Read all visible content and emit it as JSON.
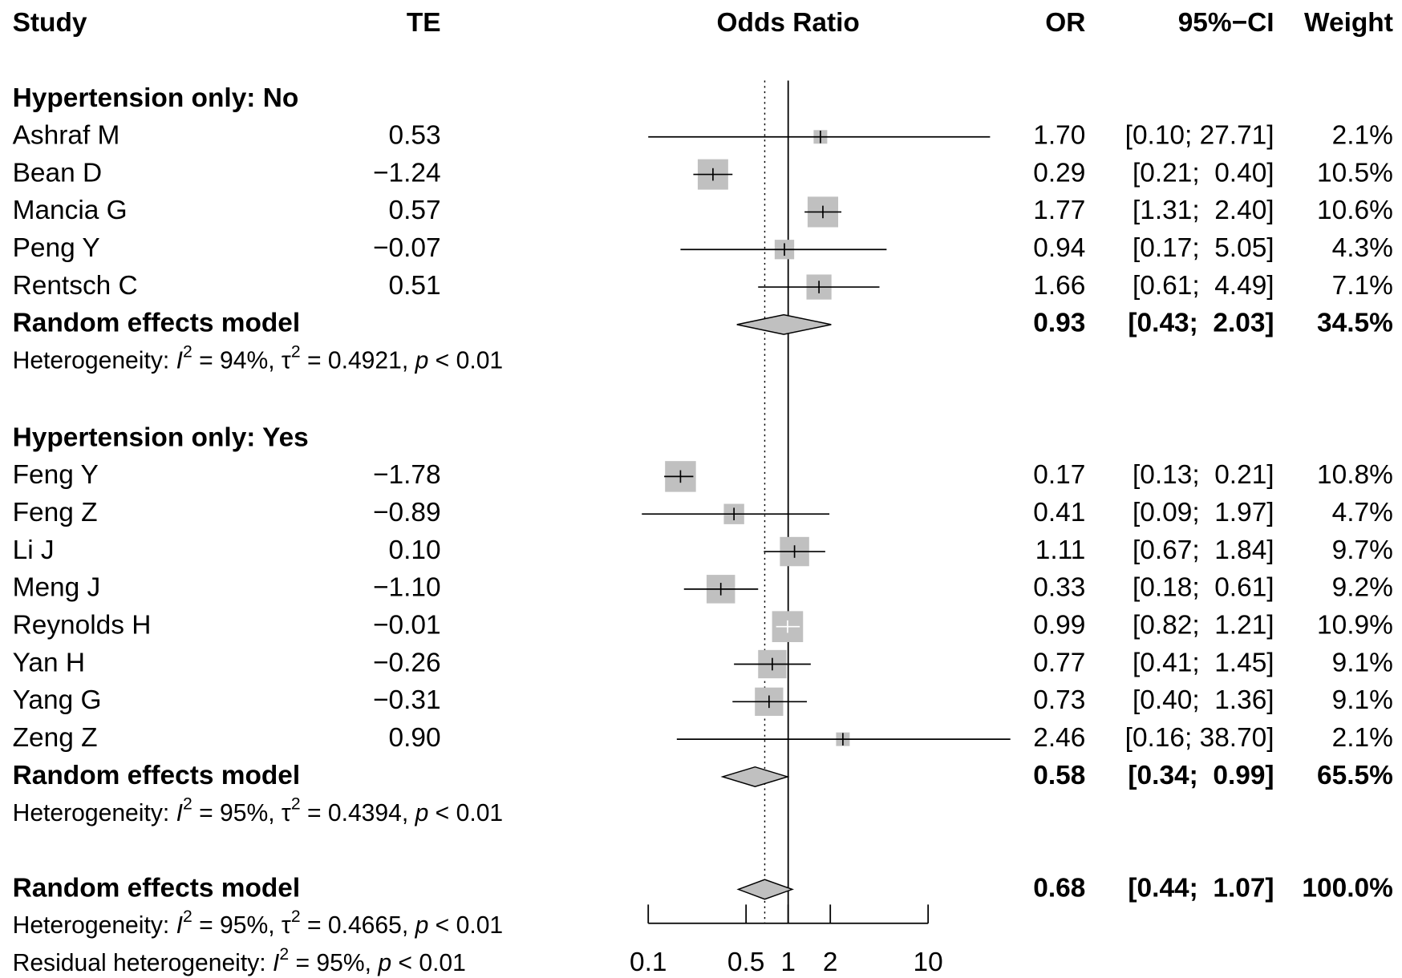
{
  "chart_data": {
    "type": "forest",
    "columns": {
      "study": "Study",
      "te": "TE",
      "plot": "Odds Ratio",
      "or": "OR",
      "ci": "95%−CI",
      "weight": "Weight"
    },
    "xscale": "log",
    "xlim": [
      0.1,
      10
    ],
    "xticks": [
      0.1,
      0.5,
      1,
      2,
      10
    ],
    "reference_line": 1,
    "square_color": "#c0c0c0",
    "diamond_color": "#c0c0c0",
    "groups": [
      {
        "title": "Hypertension only: No",
        "studies": [
          {
            "study": "Ashraf M",
            "te": 0.53,
            "te_label": "0.53",
            "or": 1.7,
            "or_label": "1.70",
            "lower": 0.1,
            "upper": 27.71,
            "ci_label": "[0.10; 27.71]",
            "weight": 2.1,
            "weight_label": "2.1%"
          },
          {
            "study": "Bean D",
            "te": -1.24,
            "te_label": "−1.24",
            "or": 0.29,
            "or_label": "0.29",
            "lower": 0.21,
            "upper": 0.4,
            "ci_label": "[0.21;  0.40]",
            "weight": 10.5,
            "weight_label": "10.5%"
          },
          {
            "study": "Mancia G",
            "te": 0.57,
            "te_label": "0.57",
            "or": 1.77,
            "or_label": "1.77",
            "lower": 1.31,
            "upper": 2.4,
            "ci_label": "[1.31;  2.40]",
            "weight": 10.6,
            "weight_label": "10.6%"
          },
          {
            "study": "Peng Y",
            "te": -0.07,
            "te_label": "−0.07",
            "or": 0.94,
            "or_label": "0.94",
            "lower": 0.17,
            "upper": 5.05,
            "ci_label": "[0.17;  5.05]",
            "weight": 4.3,
            "weight_label": "4.3%"
          },
          {
            "study": "Rentsch C",
            "te": 0.51,
            "te_label": "0.51",
            "or": 1.66,
            "or_label": "1.66",
            "lower": 0.61,
            "upper": 4.49,
            "ci_label": "[0.61;  4.49]",
            "weight": 7.1,
            "weight_label": "7.1%"
          }
        ],
        "model": {
          "label": "Random effects model",
          "or": 0.93,
          "or_label": "0.93",
          "lower": 0.43,
          "upper": 2.03,
          "ci_label": "[0.43;  2.03]",
          "weight": 34.5,
          "weight_label": "34.5%"
        },
        "heterogeneity": [
          {
            "text": "Heterogeneity: "
          },
          {
            "text": "I",
            "style": "italic"
          },
          {
            "text": "2",
            "style": "sup"
          },
          {
            "text": " = 94%, "
          },
          {
            "text": "τ"
          },
          {
            "text": "2",
            "style": "sup"
          },
          {
            "text": " = 0.4921, "
          },
          {
            "text": "p",
            "style": "italic"
          },
          {
            "text": " < 0.01"
          }
        ]
      },
      {
        "title": "Hypertension only: Yes",
        "studies": [
          {
            "study": "Feng Y",
            "te": -1.78,
            "te_label": "−1.78",
            "or": 0.17,
            "or_label": "0.17",
            "lower": 0.13,
            "upper": 0.21,
            "ci_label": "[0.13;  0.21]",
            "weight": 10.8,
            "weight_label": "10.8%"
          },
          {
            "study": "Feng Z",
            "te": -0.89,
            "te_label": "−0.89",
            "or": 0.41,
            "or_label": "0.41",
            "lower": 0.09,
            "upper": 1.97,
            "ci_label": "[0.09;  1.97]",
            "weight": 4.7,
            "weight_label": "4.7%"
          },
          {
            "study": "Li J",
            "te": 0.1,
            "te_label": "0.10",
            "or": 1.11,
            "or_label": "1.11",
            "lower": 0.67,
            "upper": 1.84,
            "ci_label": "[0.67;  1.84]",
            "weight": 9.7,
            "weight_label": "9.7%"
          },
          {
            "study": "Meng J",
            "te": -1.1,
            "te_label": "−1.10",
            "or": 0.33,
            "or_label": "0.33",
            "lower": 0.18,
            "upper": 0.61,
            "ci_label": "[0.18;  0.61]",
            "weight": 9.2,
            "weight_label": "9.2%"
          },
          {
            "study": "Reynolds H",
            "te": -0.01,
            "te_label": "−0.01",
            "or": 0.99,
            "or_label": "0.99",
            "lower": 0.82,
            "upper": 1.21,
            "ci_label": "[0.82;  1.21]",
            "weight": 10.9,
            "weight_label": "10.9%"
          },
          {
            "study": "Yan H",
            "te": -0.26,
            "te_label": "−0.26",
            "or": 0.77,
            "or_label": "0.77",
            "lower": 0.41,
            "upper": 1.45,
            "ci_label": "[0.41;  1.45]",
            "weight": 9.1,
            "weight_label": "9.1%"
          },
          {
            "study": "Yang G",
            "te": -0.31,
            "te_label": "−0.31",
            "or": 0.73,
            "or_label": "0.73",
            "lower": 0.4,
            "upper": 1.36,
            "ci_label": "[0.40;  1.36]",
            "weight": 9.1,
            "weight_label": "9.1%"
          },
          {
            "study": "Zeng Z",
            "te": 0.9,
            "te_label": "0.90",
            "or": 2.46,
            "or_label": "2.46",
            "lower": 0.16,
            "upper": 38.7,
            "ci_label": "[0.16; 38.70]",
            "weight": 2.1,
            "weight_label": "2.1%"
          }
        ],
        "model": {
          "label": "Random effects model",
          "or": 0.58,
          "or_label": "0.58",
          "lower": 0.34,
          "upper": 0.99,
          "ci_label": "[0.34;  0.99]",
          "weight": 65.5,
          "weight_label": "65.5%"
        },
        "heterogeneity": [
          {
            "text": "Heterogeneity: "
          },
          {
            "text": "I",
            "style": "italic"
          },
          {
            "text": "2",
            "style": "sup"
          },
          {
            "text": " = 95%, "
          },
          {
            "text": "τ"
          },
          {
            "text": "2",
            "style": "sup"
          },
          {
            "text": " = 0.4394, "
          },
          {
            "text": "p",
            "style": "italic"
          },
          {
            "text": " < 0.01"
          }
        ]
      }
    ],
    "overall": {
      "model": {
        "label": "Random effects model",
        "or": 0.68,
        "or_label": "0.68",
        "lower": 0.44,
        "upper": 1.07,
        "ci_label": "[0.44;  1.07]",
        "weight": 100.0,
        "weight_label": "100.0%"
      },
      "heterogeneity": [
        {
          "text": "Heterogeneity: "
        },
        {
          "text": "I",
          "style": "italic"
        },
        {
          "text": "2",
          "style": "sup"
        },
        {
          "text": " = 95%, "
        },
        {
          "text": "τ"
        },
        {
          "text": "2",
          "style": "sup"
        },
        {
          "text": " = 0.4665, "
        },
        {
          "text": "p",
          "style": "italic"
        },
        {
          "text": " < 0.01"
        }
      ],
      "residual": [
        {
          "text": "Residual heterogeneity: "
        },
        {
          "text": "I",
          "style": "italic"
        },
        {
          "text": "2",
          "style": "sup"
        },
        {
          "text": " = 95%, "
        },
        {
          "text": "p",
          "style": "italic"
        },
        {
          "text": " < 0.01"
        }
      ]
    }
  }
}
